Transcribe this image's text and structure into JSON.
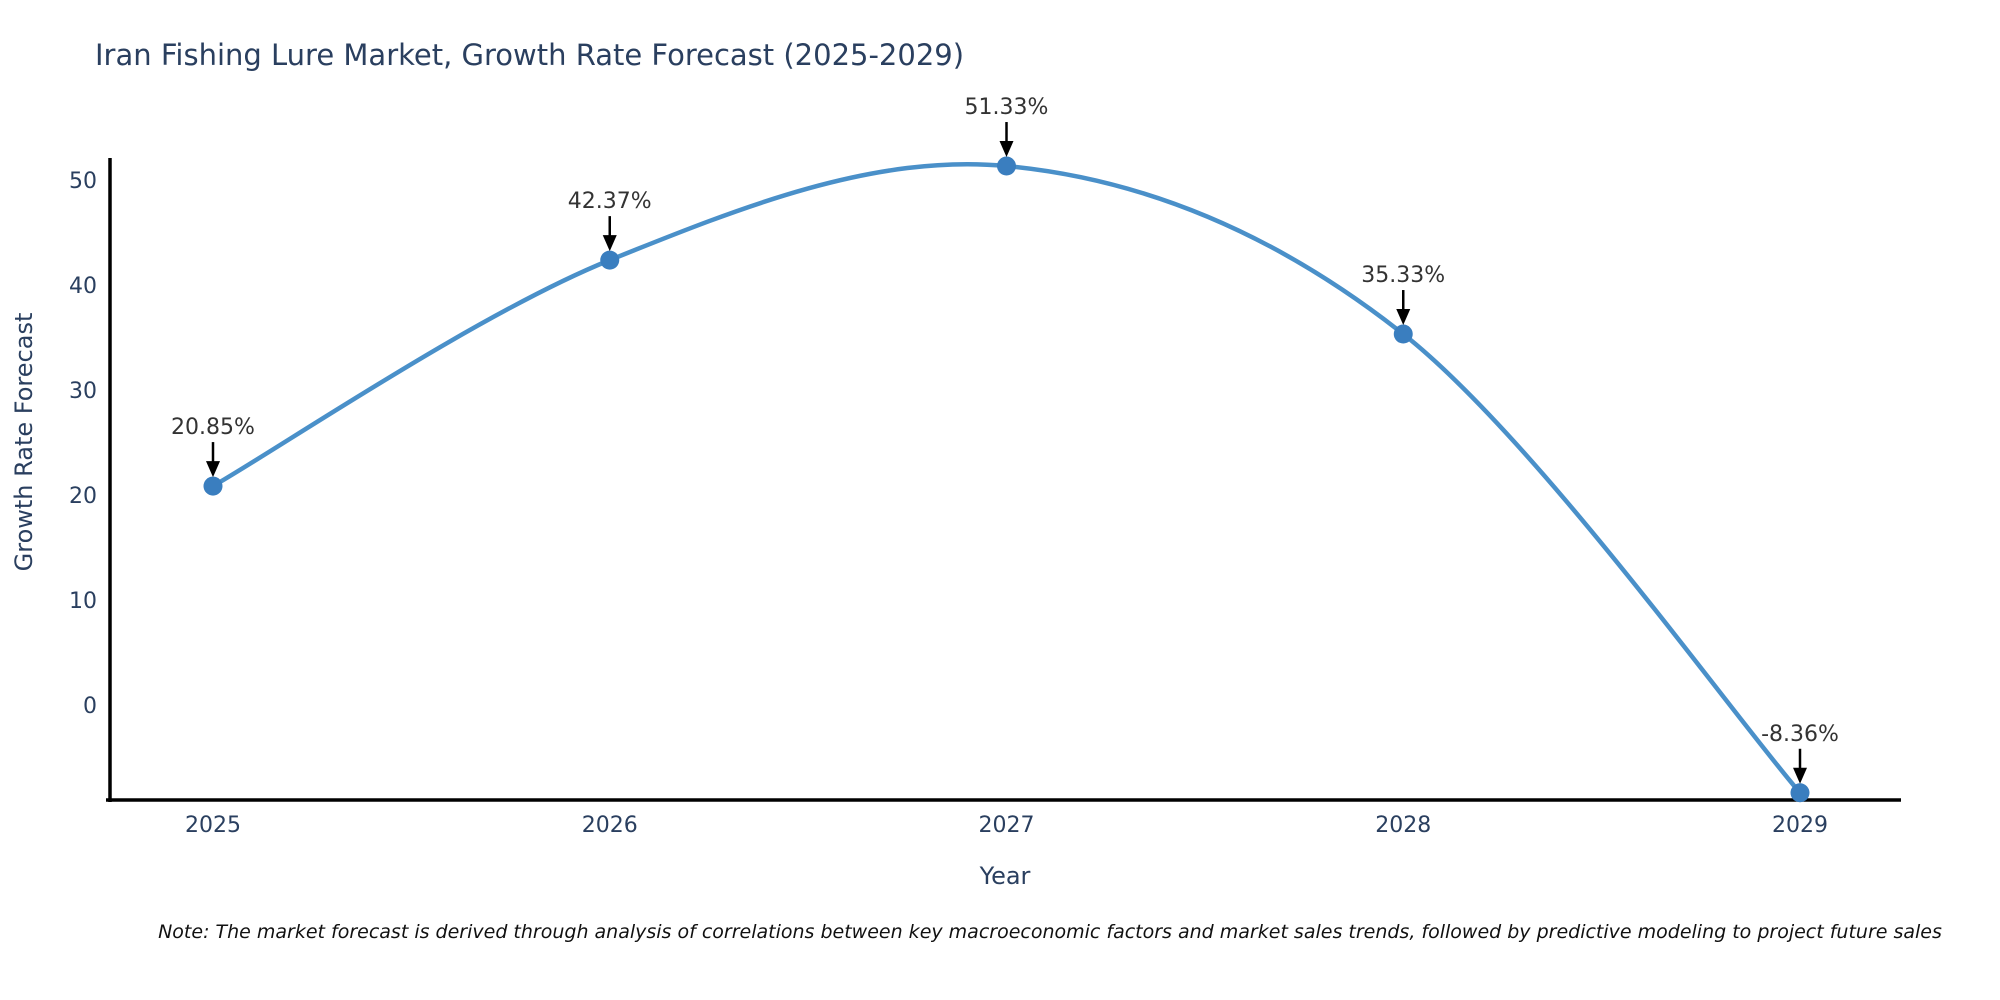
{
  "figure": {
    "note": "Note: The market forecast is derived through analysis of correlations between key macroeconomic factors and market sales trends, followed by predictive modeling to project future sales"
  },
  "chart_data": {
    "type": "line",
    "title": "Iran Fishing Lure Market, Growth Rate Forecast (2025-2029)",
    "xlabel": "Year",
    "ylabel": "Growth Rate Forecast",
    "x": [
      2025,
      2026,
      2027,
      2028,
      2029
    ],
    "values": [
      20.85,
      42.37,
      51.33,
      35.33,
      -8.36
    ],
    "point_labels": [
      "20.85%",
      "42.37%",
      "51.33%",
      "35.33%",
      "-8.36%"
    ],
    "yticks": [
      0,
      10,
      20,
      30,
      40,
      50
    ],
    "xtick_labels": [
      "2025",
      "2026",
      "2027",
      "2028",
      "2029"
    ],
    "xlim": [
      2024.74,
      2029.26
    ],
    "ylim": [
      -9.1,
      52.0
    ],
    "grid": false,
    "legend": false,
    "line_shape": "spline",
    "colors": {
      "line": "#4a90c9",
      "marker": "#3a7ebf",
      "axis": "#000000",
      "tick_text": "#2a3f5f",
      "annotation_text": "#333333",
      "annotation_arrow": "#000000",
      "title_text": "#2a3f5f",
      "background": "#ffffff"
    }
  }
}
